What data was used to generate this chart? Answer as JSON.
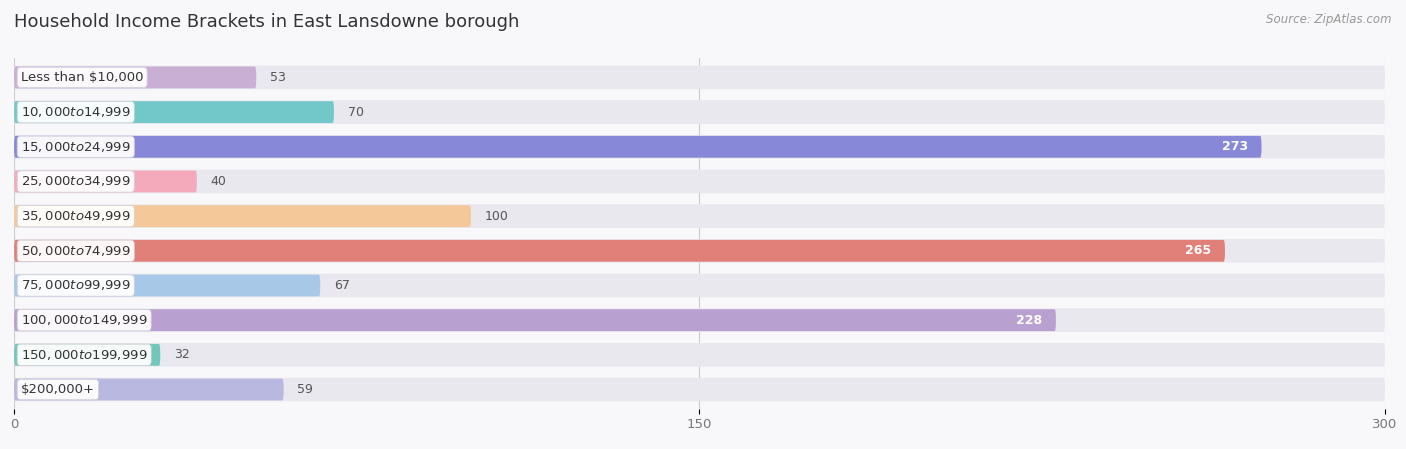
{
  "title": "Household Income Brackets in East Lansdowne borough",
  "source": "Source: ZipAtlas.com",
  "categories": [
    "Less than $10,000",
    "$10,000 to $14,999",
    "$15,000 to $24,999",
    "$25,000 to $34,999",
    "$35,000 to $49,999",
    "$50,000 to $74,999",
    "$75,000 to $99,999",
    "$100,000 to $149,999",
    "$150,000 to $199,999",
    "$200,000+"
  ],
  "values": [
    53,
    70,
    273,
    40,
    100,
    265,
    67,
    228,
    32,
    59
  ],
  "bar_colors": [
    "#c9afd4",
    "#72c8c8",
    "#8888d8",
    "#f5aabb",
    "#f5c89a",
    "#e08078",
    "#a8c8e8",
    "#b8a0d0",
    "#72c8b8",
    "#b8b8e0"
  ],
  "row_bg_color": "#e8e8ee",
  "xlim_data": [
    0,
    300
  ],
  "xticks": [
    0,
    150,
    300
  ],
  "bar_height": 0.68,
  "title_fontsize": 13,
  "label_fontsize": 9.5,
  "value_fontsize": 9,
  "tick_fontsize": 9.5,
  "background_color": "#f8f8fa",
  "threshold_inside": 130
}
